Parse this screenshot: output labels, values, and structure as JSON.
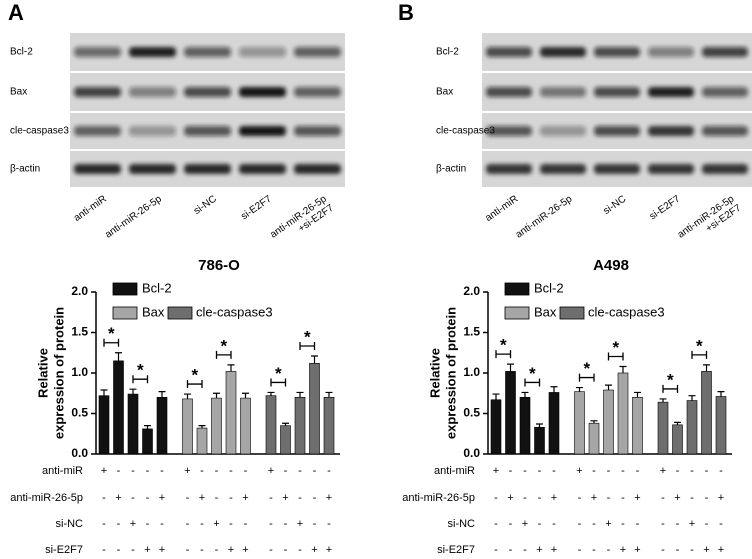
{
  "blots": [
    {
      "panel_label": "A",
      "bands": [
        "Bcl-2",
        "Bax",
        "cle-caspase3",
        "β-actin"
      ],
      "lanes": [
        [
          "anti-miR"
        ],
        [
          "anti-miR-26-5p"
        ],
        [
          "si-NC"
        ],
        [
          "si-E2F7"
        ],
        [
          "anti-miR-26-5p",
          "+si-E2F7"
        ]
      ]
    },
    {
      "panel_label": "B",
      "bands": [
        "Bcl-2",
        "Bax",
        "cle-caspase3",
        "β-actin"
      ],
      "lanes": [
        [
          "anti-miR"
        ],
        [
          "anti-miR-26-5p"
        ],
        [
          "si-NC"
        ],
        [
          "si-E2F7"
        ],
        [
          "anti-miR-26-5p",
          "+si-E2F7"
        ]
      ]
    }
  ],
  "chart_data": [
    {
      "type": "bar",
      "title": "786-O",
      "y_label": [
        "Relative",
        "expression of protein"
      ],
      "ylim": [
        0,
        2
      ],
      "yticks": [
        {
          "value": 0,
          "label": "0.0"
        },
        0.5,
        {
          "value": 1,
          "label": "1.0"
        },
        1.5,
        {
          "value": 2,
          "label": "2.0"
        }
      ],
      "series": [
        {
          "name": "Bcl-2",
          "color": "#111111",
          "values": [
            0.72,
            1.15,
            0.74,
            0.31,
            0.7
          ],
          "errors": [
            0.07,
            0.1,
            0.06,
            0.04,
            0.07
          ],
          "significance_labels": [
            "*",
            "*"
          ]
        },
        {
          "name": "Bax",
          "color": "#a6a6a6",
          "values": [
            0.68,
            0.32,
            0.69,
            1.02,
            0.69
          ],
          "errors": [
            0.06,
            0.03,
            0.06,
            0.08,
            0.06
          ],
          "significance_labels": [
            "*",
            "*"
          ]
        },
        {
          "name": "cle-caspase3",
          "color": "#6e6e6e",
          "values": [
            0.72,
            0.35,
            0.7,
            1.12,
            0.7
          ],
          "errors": [
            0.04,
            0.03,
            0.06,
            0.09,
            0.06
          ],
          "significance_labels": [
            "*",
            "*"
          ]
        }
      ],
      "conditions": [
        {
          "name": "anti-miR",
          "signs": [
            "+",
            "-",
            "-",
            "-",
            "-"
          ]
        },
        {
          "name": "anti-miR-26-5p",
          "signs": [
            "-",
            "+",
            "-",
            "-",
            "+"
          ]
        },
        {
          "name": "si-NC",
          "signs": [
            "-",
            "-",
            "+",
            "-",
            "-"
          ]
        },
        {
          "name": "si-E2F7",
          "signs": [
            "-",
            "-",
            "-",
            "+",
            "+"
          ]
        }
      ]
    },
    {
      "type": "bar",
      "title": "A498",
      "y_label": [
        "Relative",
        "expression of protein"
      ],
      "ylim": [
        0,
        2
      ],
      "yticks": [
        {
          "value": 0,
          "label": "0.0"
        },
        0.5,
        {
          "value": 1,
          "label": "1.0"
        },
        1.5,
        {
          "value": 2,
          "label": "2.0"
        }
      ],
      "series": [
        {
          "name": "Bcl-2",
          "color": "#111111",
          "values": [
            0.67,
            1.02,
            0.7,
            0.33,
            0.76
          ],
          "errors": [
            0.07,
            0.09,
            0.06,
            0.04,
            0.07
          ],
          "significance_labels": [
            "*",
            "*"
          ]
        },
        {
          "name": "Bax",
          "color": "#a6a6a6",
          "values": [
            0.77,
            0.38,
            0.79,
            1.0,
            0.7
          ],
          "errors": [
            0.05,
            0.03,
            0.06,
            0.08,
            0.06
          ],
          "significance_labels": [
            "*",
            "*"
          ]
        },
        {
          "name": "cle-caspase3",
          "color": "#6e6e6e",
          "values": [
            0.64,
            0.36,
            0.66,
            1.02,
            0.71
          ],
          "errors": [
            0.04,
            0.03,
            0.06,
            0.08,
            0.06
          ],
          "significance_labels": [
            "*",
            "*"
          ]
        }
      ],
      "conditions": [
        {
          "name": "anti-miR",
          "signs": [
            "+",
            "-",
            "-",
            "-",
            "-"
          ]
        },
        {
          "name": "anti-miR-26-5p",
          "signs": [
            "-",
            "+",
            "-",
            "-",
            "+"
          ]
        },
        {
          "name": "si-NC",
          "signs": [
            "-",
            "-",
            "+",
            "-",
            "-"
          ]
        },
        {
          "name": "si-E2F7",
          "signs": [
            "-",
            "-",
            "-",
            "+",
            "+"
          ]
        }
      ]
    }
  ]
}
